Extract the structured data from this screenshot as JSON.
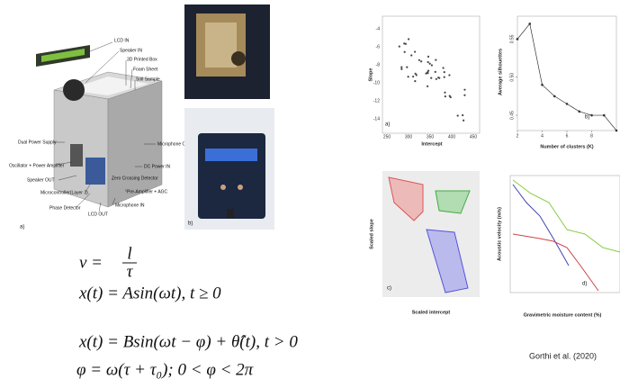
{
  "diagram": {
    "labels": [
      "LCD IN",
      "Speaker IN",
      "3D Printed Box",
      "Foam Sheet",
      "Soil Sample",
      "Dual Power Supply",
      "Microphone OUT",
      "Oscillator + Power Amplifier",
      "DC Power IN",
      "Speaker OUT",
      "Zero Crossing Detector",
      "Microcontroller(Layer 3)",
      "Pre-Amplifier + AGC",
      "Phase Detector",
      "Microphone IN",
      "LCD OUT"
    ],
    "panel": "a)"
  },
  "photo": {
    "panel": "b)"
  },
  "equations": {
    "eq1": {
      "lhs": "v =",
      "num": "l",
      "den": "τ"
    },
    "eq2": "x(t) = Asin(ωt), t ≥ 0",
    "eq3": "x(t) = Bsin(ωt − φ) + θ̂(t), t > 0",
    "eq4": "φ = ω(τ + τ₀); 0 < φ < 2π"
  },
  "scatter": {
    "panel": "a)",
    "x_label": "Intercept",
    "y_label": "Slope",
    "xticks": [
      "250",
      "300",
      "350",
      "400",
      "450"
    ],
    "yticks": [
      "-4",
      "-6",
      "-8",
      "-10",
      "-12",
      "-14"
    ]
  },
  "silhouette": {
    "type": "line",
    "panel": "b)",
    "x_label": "Number of clusters (K)",
    "y_label": "Average silhouettes",
    "x": [
      2,
      3,
      4,
      5,
      6,
      7,
      8,
      9,
      10
    ],
    "values": [
      0.55,
      0.57,
      0.49,
      0.475,
      0.465,
      0.455,
      0.45,
      0.45,
      0.43
    ],
    "xlim": [
      2,
      10
    ],
    "ylim": [
      0.43,
      0.58
    ],
    "xticks": [
      2,
      4,
      6,
      8
    ],
    "yticks": [
      {
        "value": 0.45,
        "label": "0.45"
      },
      {
        "value": 0.5,
        "label": "0.50"
      },
      {
        "value": 0.55,
        "label": "0.55"
      }
    ],
    "color": "#333333"
  },
  "clusters": {
    "panel": "c)",
    "x_label": "Scaled intercept",
    "y_label": "Scaled slope"
  },
  "velocity": {
    "panel": "d)",
    "x_label": "Gravimetric moisture content (%)",
    "y_label": "Acoustic velocity (m/s)"
  },
  "citation": "Gorthi et al. (2020)"
}
